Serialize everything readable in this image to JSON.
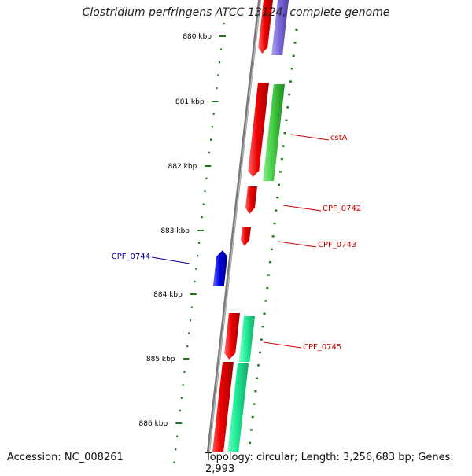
{
  "title": "Clostridium perfringens ATCC 13124, complete genome",
  "footer": {
    "accession": "Accession: NC_008261",
    "info": "Topology: circular; Length: 3,256,683 bp; Genes: 2,993"
  },
  "scale_labels": [
    "880 kbp",
    "881 kbp",
    "882 kbp",
    "883 kbp",
    "884 kbp",
    "885 kbp",
    "886 kbp"
  ],
  "gene_labels": [
    {
      "name": "cstA",
      "color": "#cc0000"
    },
    {
      "name": "CPF_0742",
      "color": "#cc0000"
    },
    {
      "name": "CPF_0743",
      "color": "#cc0000"
    },
    {
      "name": "CPF_0744",
      "color": "#000099"
    },
    {
      "name": "CPF_0745",
      "color": "#cc0000"
    }
  ],
  "colors": {
    "forward_cds": "#ee0000",
    "reverse_cds": "#0000dd",
    "feature_purple": "#7a6ad8",
    "feature_green": "#44cc44",
    "feature_teal": "#22ee99",
    "ruler": "#1a7a1a",
    "backbone": "#888888"
  }
}
